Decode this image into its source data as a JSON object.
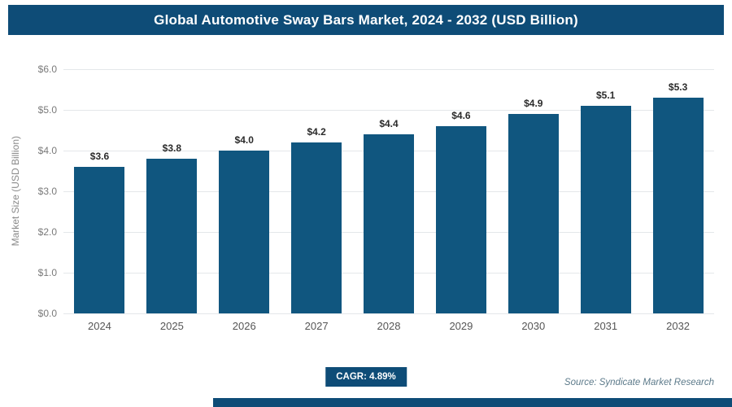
{
  "header": {
    "title": "Global Automotive Sway Bars Market, 2024 - 2032 (USD Billion)"
  },
  "chart_data": {
    "type": "bar",
    "title": "Global Automotive Sway Bars Market, 2024 - 2032 (USD Billion)",
    "categories": [
      "2024",
      "2025",
      "2026",
      "2027",
      "2028",
      "2029",
      "2030",
      "2031",
      "2032"
    ],
    "values": [
      3.6,
      3.8,
      4.0,
      4.2,
      4.4,
      4.6,
      4.9,
      5.1,
      5.3
    ],
    "value_labels": [
      "$3.6",
      "$3.8",
      "$4.0",
      "$4.2",
      "$4.4",
      "$4.6",
      "$4.9",
      "$5.1",
      "$5.3"
    ],
    "xlabel": "",
    "ylabel": "Market Size (USD Billion)",
    "ylim": [
      0,
      6
    ],
    "yticks": [
      "$0.0",
      "$1.0",
      "$2.0",
      "$3.0",
      "$4.0",
      "$5.0",
      "$6.0"
    ],
    "grid": true,
    "legend": false
  },
  "footer": {
    "cagr_label": "CAGR: 4.89%",
    "source": "Source: Syndicate Market Research"
  },
  "colors": {
    "primary": "#0e4c77",
    "bar": "#10567f",
    "grid": "#e4e7ea"
  }
}
